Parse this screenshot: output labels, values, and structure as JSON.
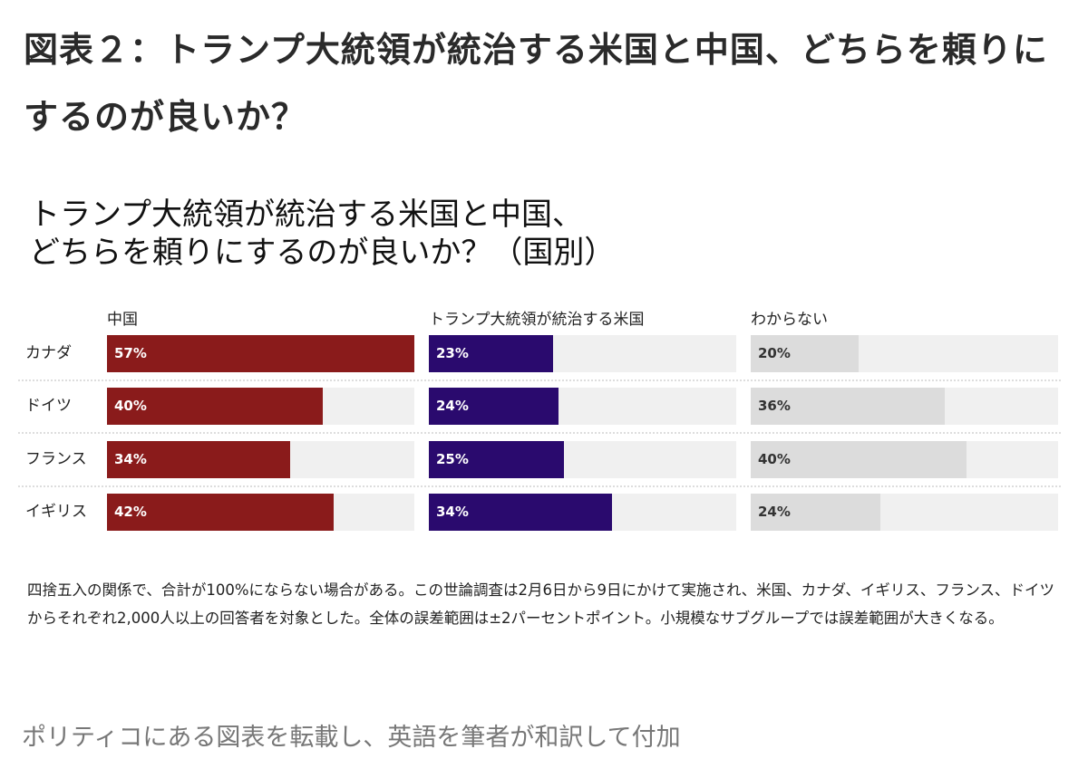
{
  "page_title": "図表２：トランプ大統領が統治する米国と中国、どちらを頼りにするのが良いか？",
  "chart_data": {
    "type": "bar",
    "orientation": "horizontal",
    "title_lines": [
      "トランプ大統領が統治する米国と中国、",
      "どちらを頼りにするのが良いか？（国別）"
    ],
    "categories": [
      "カナダ",
      "ドイツ",
      "フランス",
      "イギリス"
    ],
    "series": [
      {
        "name": "中国",
        "values": [
          57,
          40,
          34,
          42
        ],
        "color": "#8a1b1b"
      },
      {
        "name": "トランプ大統領が統治する米国",
        "values": [
          23,
          24,
          25,
          34
        ],
        "color": "#2a0a6e"
      },
      {
        "name": "わからない",
        "values": [
          20,
          36,
          40,
          24
        ],
        "color": "#dcdcdc"
      }
    ],
    "unit": "%",
    "xlim": [
      0,
      57
    ],
    "track_color": "#f0f0f0",
    "legend": "column-headers"
  },
  "notes": "四捨五入の関係で、合計が100%にならない場合がある。この世論調査は2月6日から9日にかけて実施され、米国、カナダ、イギリス、フランス、ドイツからそれぞれ2,000人以上の回答者を対象とした。全体の誤差範囲は±2パーセントポイント。小規模なサブグループでは誤差範囲が大きくなる。",
  "footer": "ポリティコにある図表を転載し、英語を筆者が和訳して付加"
}
